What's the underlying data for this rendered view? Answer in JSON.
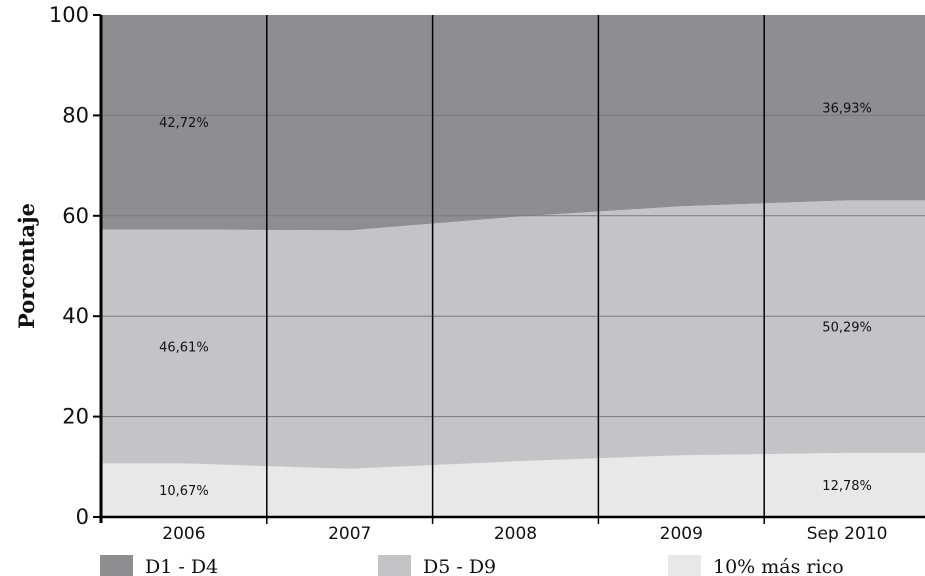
{
  "chart_data": {
    "type": "area",
    "stacked": true,
    "stacked_to_percent": true,
    "title": "",
    "xlabel": "",
    "ylabel": "Porcentaje",
    "ylim": [
      0,
      100
    ],
    "yticks": [
      0,
      20,
      40,
      60,
      80,
      100
    ],
    "categories": [
      "2006",
      "2007",
      "2008",
      "2009",
      "Sep 2010"
    ],
    "grid": "horizontal",
    "legend_position": "bottom",
    "series": [
      {
        "name": "10% más rico",
        "color": "#e8e8e8",
        "values": [
          10.67,
          9.6,
          11.1,
          12.3,
          12.78
        ]
      },
      {
        "name": "D5 - D9",
        "color": "#c4c4c6",
        "values": [
          46.61,
          47.5,
          48.7,
          49.6,
          50.29
        ]
      },
      {
        "name": "D1 - D4",
        "color": "#8e8e91",
        "values": [
          42.72,
          42.9,
          40.2,
          38.1,
          36.93
        ]
      }
    ],
    "data_labels": [
      {
        "category": "2006",
        "series": "D1 - D4",
        "text": "42,72%"
      },
      {
        "category": "Sep 2010",
        "series": "D1 - D4",
        "text": "36,93%"
      },
      {
        "category": "2006",
        "series": "D5 - D9",
        "text": "46,61%"
      },
      {
        "category": "Sep 2010",
        "series": "D5 - D9",
        "text": "50,29%"
      },
      {
        "category": "2006",
        "series": "10% más rico",
        "text": "10,67%"
      },
      {
        "category": "Sep 2010",
        "series": "10% más rico",
        "text": "12,78%"
      }
    ]
  }
}
